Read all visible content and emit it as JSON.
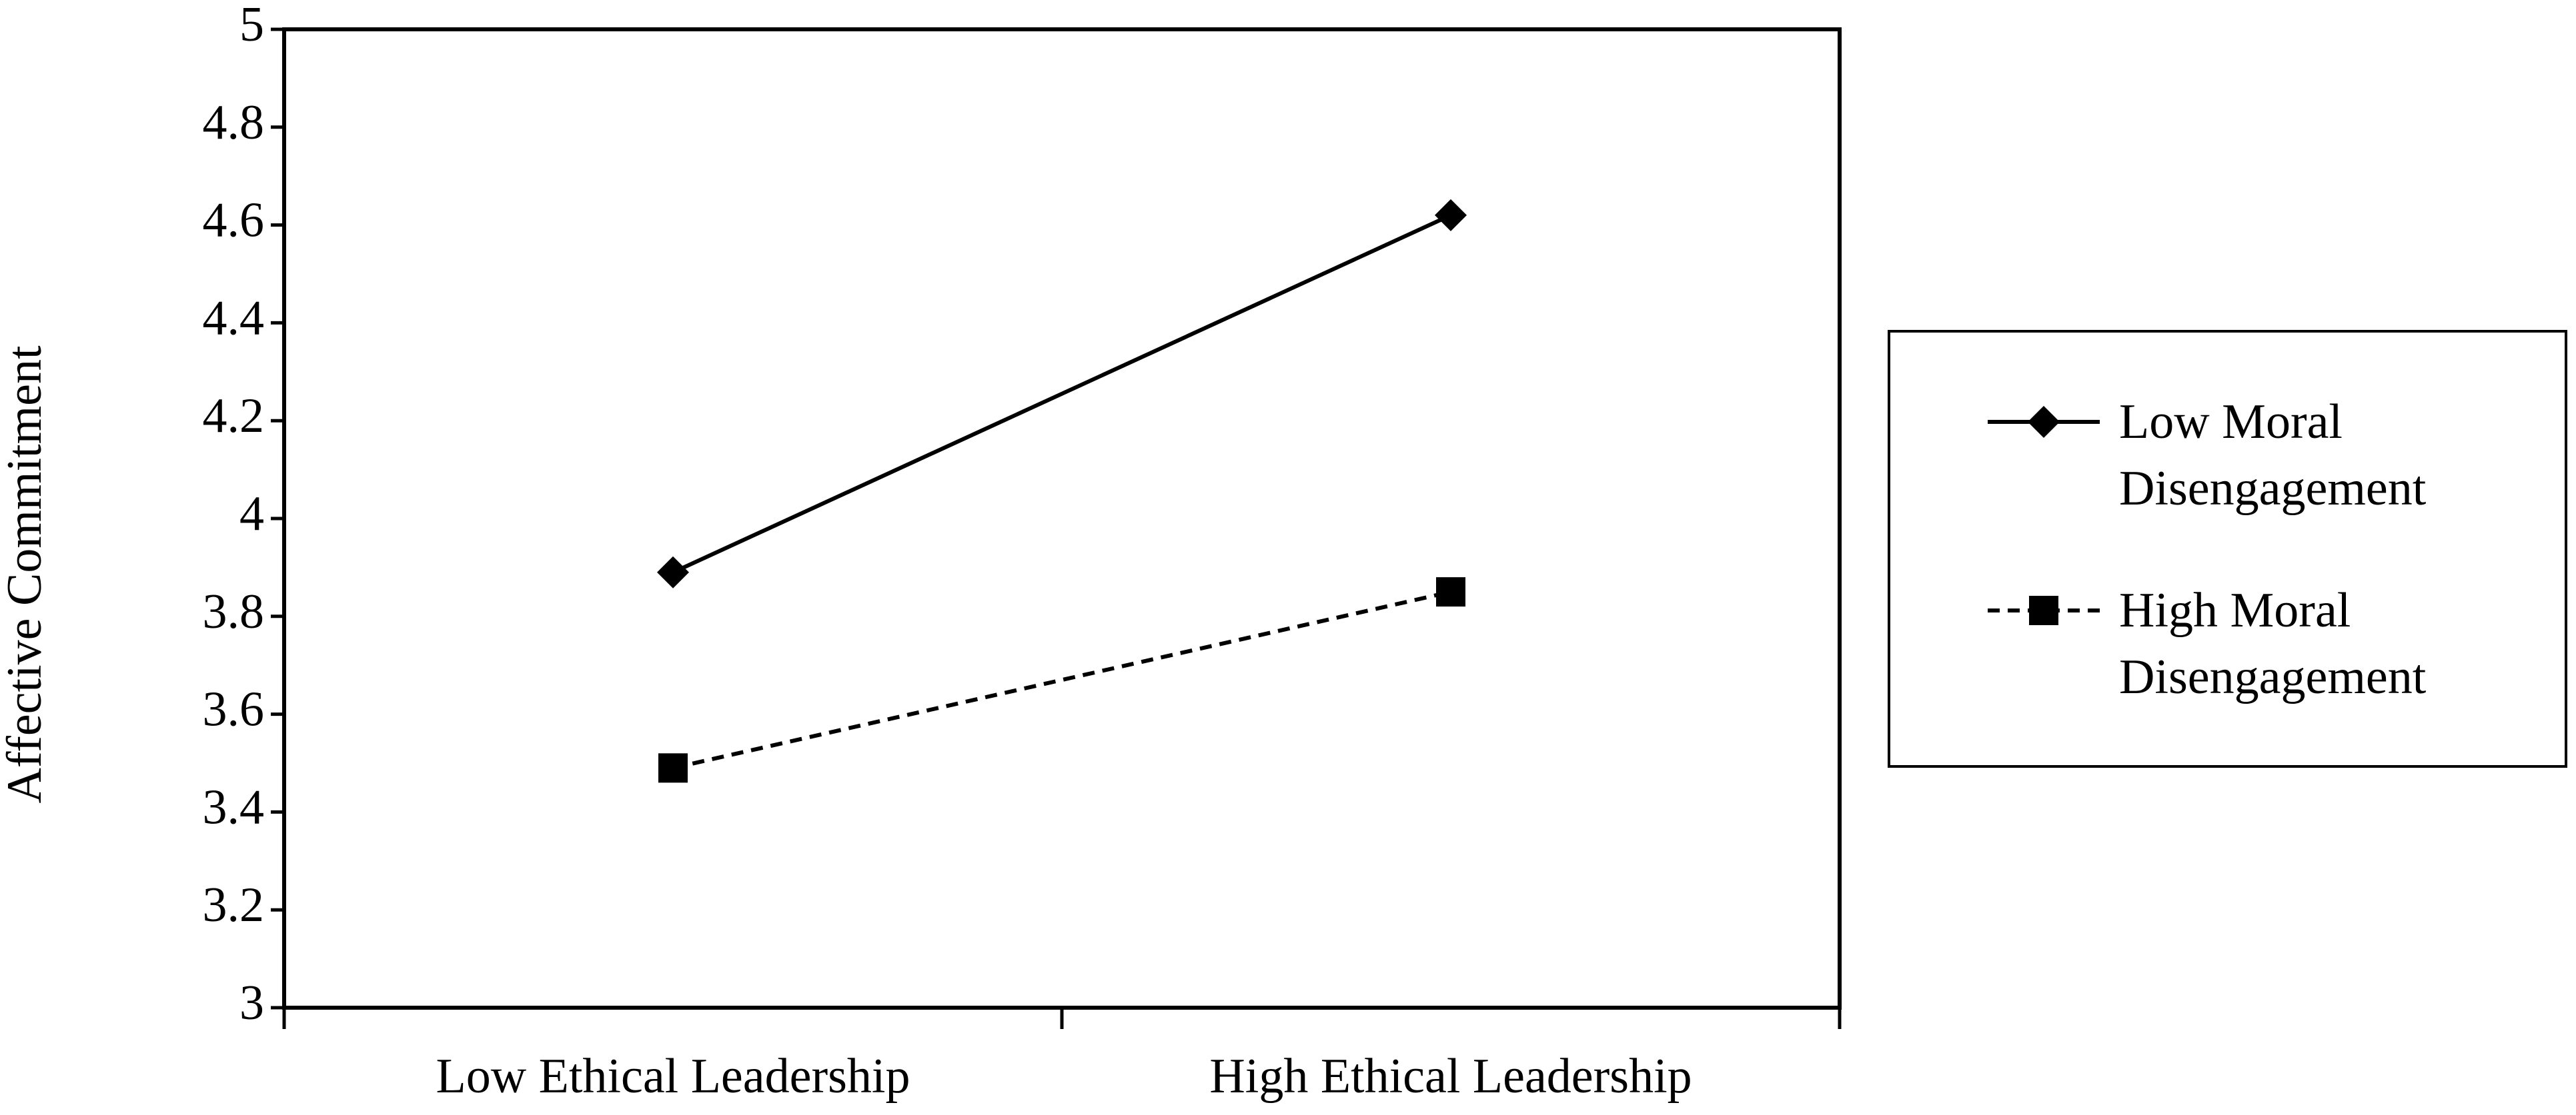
{
  "chart_data": {
    "type": "line",
    "y_label": "Affective Commitment",
    "categories": [
      "Low Ethical Leadership",
      "High Ethical Leadership"
    ],
    "series": [
      {
        "name": "Low Moral Disengagement",
        "color": "#000000",
        "marker": "diamond",
        "dashed": false,
        "values": [
          3.89,
          4.62
        ]
      },
      {
        "name": "High Moral Disengagement",
        "color": "#000000",
        "marker": "square",
        "dashed": true,
        "values": [
          3.49,
          3.85
        ]
      }
    ],
    "ylim": [
      3,
      5
    ],
    "yticks": [
      3,
      3.2,
      3.4,
      3.6,
      3.8,
      4,
      4.2,
      4.4,
      4.6,
      4.8,
      5
    ],
    "grid": false,
    "legend": "right"
  }
}
